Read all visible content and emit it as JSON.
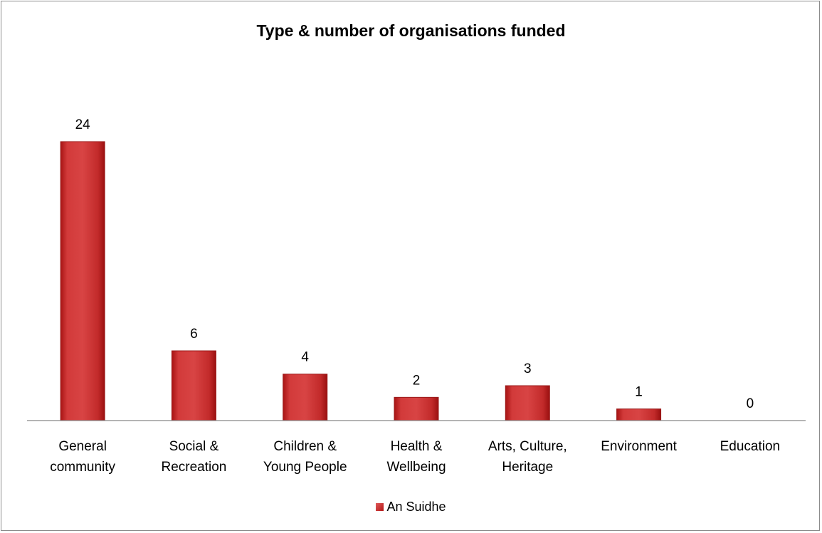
{
  "chart_data": {
    "type": "bar",
    "title": "Type & number of organisations funded",
    "categories": [
      [
        "General",
        "community"
      ],
      [
        "Social &",
        "Recreation"
      ],
      [
        "Children &",
        "Young People"
      ],
      [
        "Health &",
        "Wellbeing"
      ],
      [
        "Arts, Culture,",
        "Heritage"
      ],
      [
        "Environment"
      ],
      [
        "Education"
      ]
    ],
    "series": [
      {
        "name": "An Suidhe",
        "values": [
          24,
          6,
          4,
          2,
          3,
          1,
          0
        ],
        "color": "#c42a2a"
      }
    ],
    "data_labels": [
      "24",
      "6",
      "4",
      "2",
      "3",
      "1",
      "0"
    ],
    "ylim": [
      0,
      24
    ],
    "gridlines": false,
    "y_axis_visible": false,
    "legend_position": "bottom"
  }
}
